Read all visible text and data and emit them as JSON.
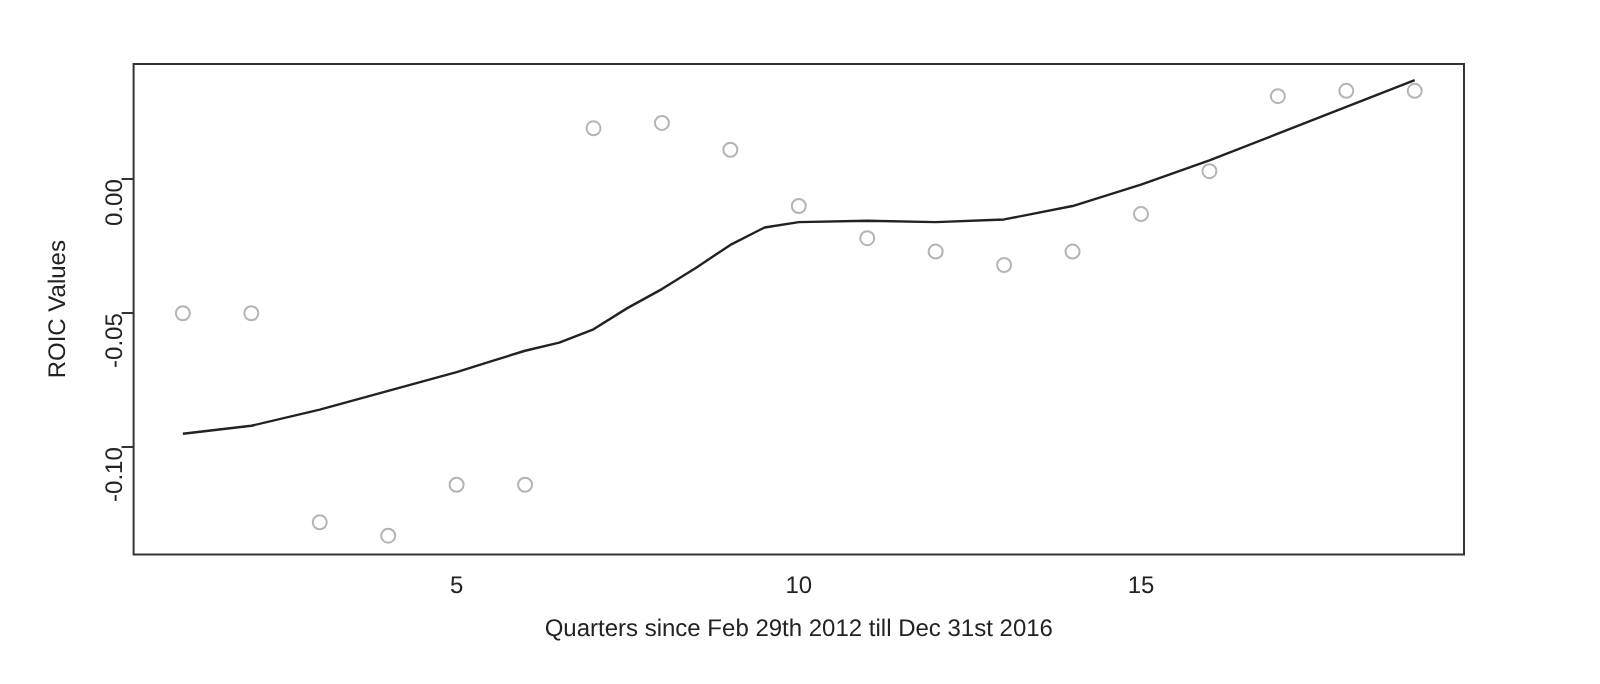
{
  "chart_data": {
    "type": "scatter",
    "xlabel": "Quarters since Feb 29th 2012 till Dec 31st 2016",
    "ylabel": "ROIC Values",
    "xlim": [
      0.28,
      19.72
    ],
    "xticks": [
      5,
      10,
      15
    ],
    "ylim": [
      -0.14,
      0.043
    ],
    "yticks": [
      {
        "value": -0.1,
        "label": "-0.10"
      },
      {
        "value": -0.05,
        "label": "-0.05"
      },
      {
        "value": 0,
        "label": "0.00"
      }
    ],
    "grid": false,
    "legend": false,
    "series": [
      {
        "type": "scatter",
        "color": "#b4b4b4",
        "marker": "circle",
        "x": [
          1,
          2,
          3,
          4,
          5,
          6,
          7,
          8,
          9,
          10,
          11,
          12,
          13,
          14,
          15,
          16,
          17,
          18,
          19
        ],
        "values": [
          -0.05,
          -0.05,
          -0.128,
          -0.133,
          -0.114,
          -0.114,
          0.019,
          0.021,
          0.011,
          -0.01,
          -0.022,
          -0.027,
          -0.032,
          -0.027,
          -0.013,
          0.003,
          0.031,
          0.033,
          0.033
        ]
      },
      {
        "type": "line",
        "color": "#222222",
        "marker": "none",
        "line_style": "solid",
        "x": [
          1,
          2,
          3,
          4,
          5,
          5.5,
          6,
          6.5,
          7,
          7.5,
          8,
          8.5,
          9,
          9.5,
          10,
          11,
          12,
          13,
          14,
          15,
          16,
          17,
          18,
          19
        ],
        "values": [
          -0.095,
          -0.092,
          -0.086,
          -0.079,
          -0.072,
          -0.068,
          -0.064,
          -0.061,
          -0.056,
          -0.048,
          -0.041,
          -0.033,
          -0.0245,
          -0.018,
          -0.016,
          -0.0155,
          -0.016,
          -0.015,
          -0.01,
          -0.002,
          0.007,
          0.017,
          0.027,
          0.037
        ]
      }
    ]
  }
}
